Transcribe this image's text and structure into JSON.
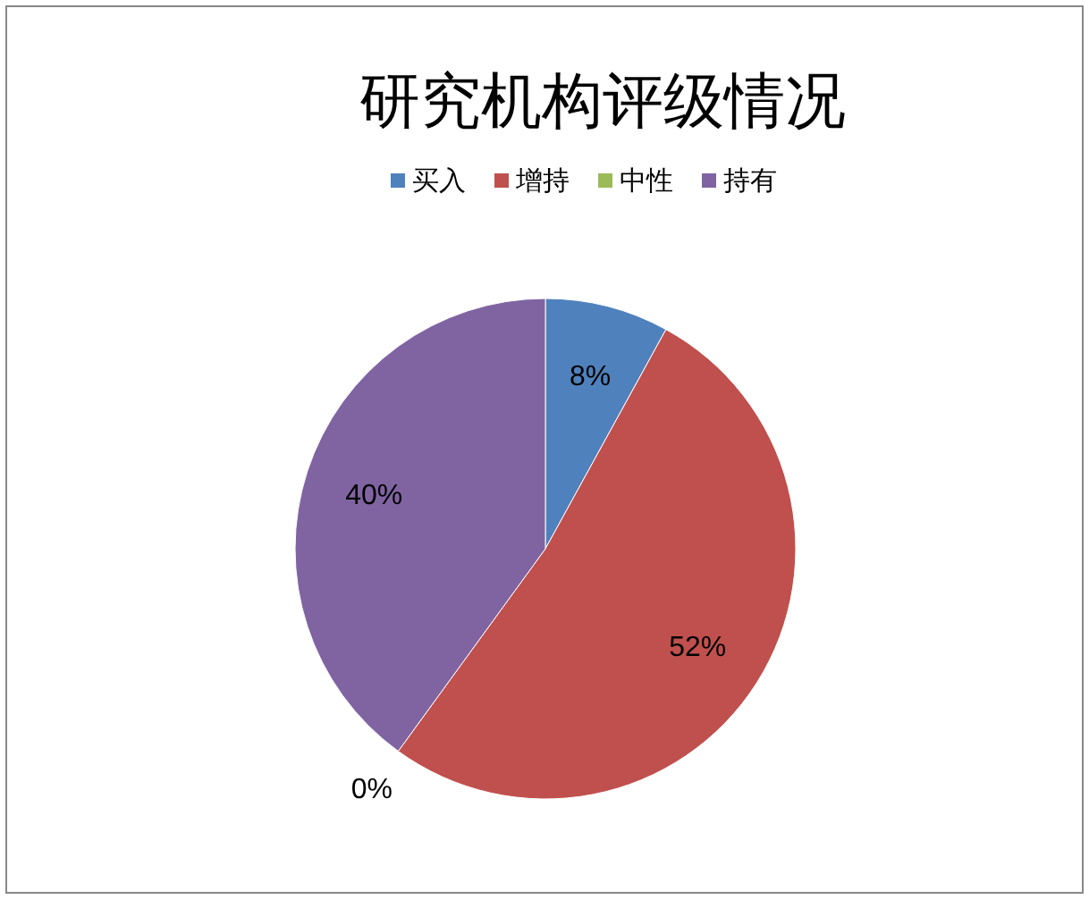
{
  "chart_data": {
    "type": "pie",
    "title": "研究机构评级情况",
    "categories": [
      "买入",
      "增持",
      "中性",
      "持有"
    ],
    "values": [
      8,
      52,
      0,
      40
    ],
    "colors": [
      "#4f81bd",
      "#c0504d",
      "#9bbb59",
      "#8064a2"
    ],
    "value_labels": [
      "8%",
      "52%",
      "0%",
      "40%"
    ],
    "legend": "top"
  }
}
